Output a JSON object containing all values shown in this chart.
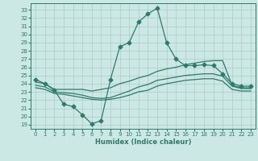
{
  "xlabel": "Humidex (Indice chaleur)",
  "bg_color": "#cce8e4",
  "grid_color": "#aaccc8",
  "line_color": "#2d7a6e",
  "xlim": [
    -0.5,
    23.5
  ],
  "ylim": [
    18.5,
    33.8
  ],
  "xticks": [
    0,
    1,
    2,
    3,
    4,
    5,
    6,
    7,
    8,
    9,
    10,
    11,
    12,
    13,
    14,
    15,
    16,
    17,
    18,
    19,
    20,
    21,
    22,
    23
  ],
  "yticks": [
    19,
    20,
    21,
    22,
    23,
    24,
    25,
    26,
    27,
    28,
    29,
    30,
    31,
    32,
    33
  ],
  "line1_x": [
    0,
    1,
    2,
    3,
    4,
    5,
    6,
    7,
    8,
    9,
    10,
    11,
    12,
    13,
    14,
    15,
    16,
    17,
    18,
    19,
    20,
    21,
    22,
    23
  ],
  "line1_y": [
    24.5,
    24.0,
    23.2,
    21.5,
    21.2,
    20.2,
    19.1,
    19.5,
    24.5,
    28.5,
    29.0,
    31.5,
    32.5,
    33.2,
    29.0,
    27.0,
    26.2,
    26.2,
    26.3,
    26.2,
    25.2,
    24.0,
    23.7,
    23.7
  ],
  "line2_x": [
    0,
    1,
    2,
    3,
    4,
    5,
    6,
    7,
    8,
    9,
    10,
    11,
    12,
    13,
    14,
    15,
    16,
    17,
    18,
    19,
    20,
    21,
    22,
    23
  ],
  "line2_y": [
    24.2,
    24.0,
    23.3,
    23.3,
    23.3,
    23.3,
    23.1,
    23.3,
    23.5,
    24.0,
    24.3,
    24.7,
    25.0,
    25.5,
    25.8,
    26.0,
    26.3,
    26.5,
    26.7,
    26.8,
    26.8,
    23.8,
    23.5,
    23.5
  ],
  "line3_x": [
    0,
    1,
    2,
    3,
    4,
    5,
    6,
    7,
    8,
    9,
    10,
    11,
    12,
    13,
    14,
    15,
    16,
    17,
    18,
    19,
    20,
    21,
    22,
    23
  ],
  "line3_y": [
    23.5,
    23.3,
    22.8,
    22.7,
    22.5,
    22.3,
    22.1,
    22.0,
    22.1,
    22.3,
    22.6,
    23.0,
    23.2,
    23.7,
    24.0,
    24.2,
    24.4,
    24.5,
    24.6,
    24.6,
    24.3,
    23.3,
    23.1,
    23.1
  ],
  "line4_x": [
    0,
    1,
    2,
    3,
    4,
    5,
    6,
    7,
    8,
    9,
    10,
    11,
    12,
    13,
    14,
    15,
    16,
    17,
    18,
    19,
    20,
    21,
    22,
    23
  ],
  "line4_y": [
    23.8,
    23.6,
    23.0,
    22.9,
    22.8,
    22.6,
    22.3,
    22.2,
    22.3,
    22.7,
    23.1,
    23.6,
    23.9,
    24.4,
    24.6,
    24.8,
    25.0,
    25.1,
    25.2,
    25.2,
    24.9,
    23.7,
    23.4,
    23.4
  ],
  "markersize": 2.5,
  "linewidth": 0.9,
  "xlabel_fontsize": 6.0,
  "tick_fontsize": 5.0
}
